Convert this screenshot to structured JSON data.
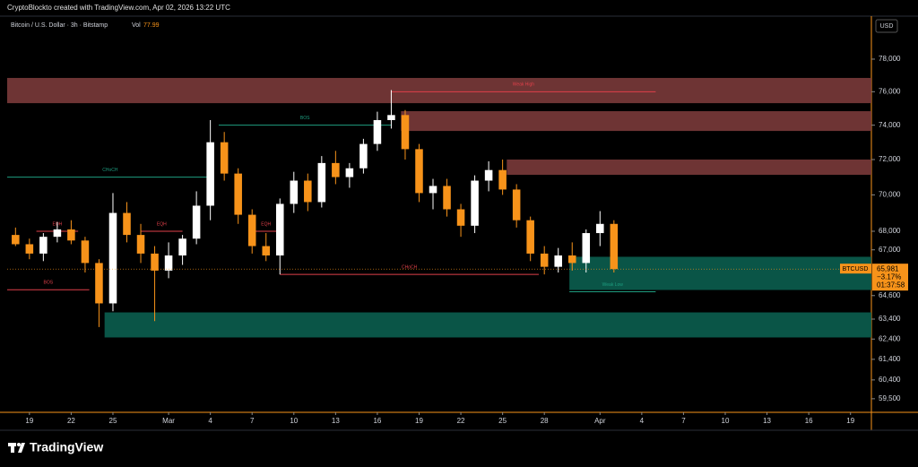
{
  "header": {
    "credit": "CryptoBlockto created with TradingView.com, Apr 02, 2026 13:22 UTC"
  },
  "footer": {
    "brand": "TradingView"
  },
  "chart_data": {
    "type": "candlestick",
    "title": "Bitcoin / U.S. Dollar · 3h · Bitstamp",
    "volume_label": "Vol",
    "volume": 77.99,
    "currency": "USD",
    "log_scale": true,
    "grid": false,
    "up_color": "#ffffff",
    "down_color": "#f7931a",
    "xlim": [
      -1.6,
      60.5
    ],
    "ylim": [
      58860,
      80720
    ],
    "xticks": [
      {
        "value": 0,
        "label": "19"
      },
      {
        "value": 3,
        "label": "22"
      },
      {
        "value": 6,
        "label": "25"
      },
      {
        "value": 10,
        "label": "Mar"
      },
      {
        "value": 13,
        "label": "4"
      },
      {
        "value": 16,
        "label": "7"
      },
      {
        "value": 19,
        "label": "10"
      },
      {
        "value": 22,
        "label": "13"
      },
      {
        "value": 25,
        "label": "16"
      },
      {
        "value": 28,
        "label": "19"
      },
      {
        "value": 31,
        "label": "22"
      },
      {
        "value": 34,
        "label": "25"
      },
      {
        "value": 37,
        "label": "28"
      },
      {
        "value": 41,
        "label": "Apr"
      },
      {
        "value": 44,
        "label": "4"
      },
      {
        "value": 47,
        "label": "7"
      },
      {
        "value": 50,
        "label": "10"
      },
      {
        "value": 53,
        "label": "13"
      },
      {
        "value": 56,
        "label": "16"
      },
      {
        "value": 59,
        "label": "19"
      }
    ],
    "yticks": [
      {
        "value": 78000,
        "label": "78,000"
      },
      {
        "value": 76000,
        "label": "76,000"
      },
      {
        "value": 74000,
        "label": "74,000"
      },
      {
        "value": 72000,
        "label": "72,000"
      },
      {
        "value": 70000,
        "label": "70,000"
      },
      {
        "value": 68000,
        "label": "68,000"
      },
      {
        "value": 67000,
        "label": "67,000"
      },
      {
        "value": 64600,
        "label": "64,600"
      },
      {
        "value": 63400,
        "label": "63,400"
      },
      {
        "value": 62400,
        "label": "62,400"
      },
      {
        "value": 61400,
        "label": "61,400"
      },
      {
        "value": 60400,
        "label": "60,400"
      },
      {
        "value": 59500,
        "label": "59,500"
      }
    ],
    "candles": [
      {
        "x": -1,
        "open": 67800,
        "high": 68200,
        "low": 67200,
        "close": 67300
      },
      {
        "x": 0,
        "open": 67300,
        "high": 67600,
        "low": 66500,
        "close": 66800
      },
      {
        "x": 1,
        "open": 66800,
        "high": 67900,
        "low": 66400,
        "close": 67700
      },
      {
        "x": 2,
        "open": 67700,
        "high": 68500,
        "low": 67400,
        "close": 68100
      },
      {
        "x": 3,
        "open": 68100,
        "high": 68600,
        "low": 67300,
        "close": 67500
      },
      {
        "x": 4,
        "open": 67500,
        "high": 67700,
        "low": 65800,
        "close": 66300
      },
      {
        "x": 5,
        "open": 66300,
        "high": 66500,
        "low": 63000,
        "close": 64200
      },
      {
        "x": 6,
        "open": 64200,
        "high": 70100,
        "low": 63800,
        "close": 69000
      },
      {
        "x": 7,
        "open": 69000,
        "high": 69600,
        "low": 67400,
        "close": 67800
      },
      {
        "x": 8,
        "open": 67800,
        "high": 68400,
        "low": 66300,
        "close": 66800
      },
      {
        "x": 9,
        "open": 66800,
        "high": 67200,
        "low": 63300,
        "close": 65900
      },
      {
        "x": 10,
        "open": 65900,
        "high": 67400,
        "low": 65500,
        "close": 66700
      },
      {
        "x": 11,
        "open": 66700,
        "high": 67800,
        "low": 66200,
        "close": 67600
      },
      {
        "x": 12,
        "open": 67600,
        "high": 70200,
        "low": 67300,
        "close": 69400
      },
      {
        "x": 13,
        "open": 69400,
        "high": 74300,
        "low": 68600,
        "close": 73000
      },
      {
        "x": 14,
        "open": 73000,
        "high": 73600,
        "low": 70800,
        "close": 71200
      },
      {
        "x": 15,
        "open": 71200,
        "high": 71500,
        "low": 68400,
        "close": 68900
      },
      {
        "x": 16,
        "open": 68900,
        "high": 69200,
        "low": 66800,
        "close": 67200
      },
      {
        "x": 17,
        "open": 67200,
        "high": 67900,
        "low": 66400,
        "close": 66700
      },
      {
        "x": 18,
        "open": 66700,
        "high": 69800,
        "low": 65700,
        "close": 69500
      },
      {
        "x": 19,
        "open": 69500,
        "high": 71300,
        "low": 69000,
        "close": 70800
      },
      {
        "x": 20,
        "open": 70800,
        "high": 71200,
        "low": 69100,
        "close": 69600
      },
      {
        "x": 21,
        "open": 69600,
        "high": 72200,
        "low": 69300,
        "close": 71800
      },
      {
        "x": 22,
        "open": 71800,
        "high": 72500,
        "low": 70600,
        "close": 71000
      },
      {
        "x": 23,
        "open": 71000,
        "high": 71800,
        "low": 70400,
        "close": 71500
      },
      {
        "x": 24,
        "open": 71500,
        "high": 73200,
        "low": 71200,
        "close": 72900
      },
      {
        "x": 25,
        "open": 72900,
        "high": 74800,
        "low": 72500,
        "close": 74300
      },
      {
        "x": 26,
        "open": 74300,
        "high": 76100,
        "low": 73800,
        "close": 74600
      },
      {
        "x": 27,
        "open": 74600,
        "high": 74900,
        "low": 72000,
        "close": 72600
      },
      {
        "x": 28,
        "open": 72600,
        "high": 72900,
        "low": 69600,
        "close": 70100
      },
      {
        "x": 29,
        "open": 70100,
        "high": 70900,
        "low": 69200,
        "close": 70500
      },
      {
        "x": 30,
        "open": 70500,
        "high": 70900,
        "low": 68800,
        "close": 69200
      },
      {
        "x": 31,
        "open": 69200,
        "high": 69500,
        "low": 67700,
        "close": 68300
      },
      {
        "x": 32,
        "open": 68300,
        "high": 71100,
        "low": 67900,
        "close": 70800
      },
      {
        "x": 33,
        "open": 70800,
        "high": 71900,
        "low": 70200,
        "close": 71400
      },
      {
        "x": 34,
        "open": 71400,
        "high": 72000,
        "low": 70000,
        "close": 70300
      },
      {
        "x": 35,
        "open": 70300,
        "high": 70600,
        "low": 68200,
        "close": 68600
      },
      {
        "x": 36,
        "open": 68600,
        "high": 68800,
        "low": 66400,
        "close": 66800
      },
      {
        "x": 37,
        "open": 66800,
        "high": 67200,
        "low": 65700,
        "close": 66100
      },
      {
        "x": 38,
        "open": 66100,
        "high": 67100,
        "low": 65800,
        "close": 66700
      },
      {
        "x": 39,
        "open": 66700,
        "high": 67400,
        "low": 65900,
        "close": 66300
      },
      {
        "x": 40,
        "open": 66300,
        "high": 68100,
        "low": 65800,
        "close": 67900
      },
      {
        "x": 41,
        "open": 67900,
        "high": 69100,
        "low": 67200,
        "close": 68400
      },
      {
        "x": 42,
        "open": 68400,
        "high": 68600,
        "low": 65800,
        "close": 65981
      }
    ],
    "zones": [
      {
        "x0": -1.6,
        "x1": 60.5,
        "top": 76840,
        "bottom": 75310,
        "color": "#7a3a3a"
      },
      {
        "x0": 26.7,
        "x1": 60.5,
        "top": 74830,
        "bottom": 73660,
        "color": "#7a3a3a"
      },
      {
        "x0": 34.3,
        "x1": 60.5,
        "top": 72000,
        "bottom": 71130,
        "color": "#7a3a3a"
      },
      {
        "x0": 38.8,
        "x1": 60.5,
        "top": 66630,
        "bottom": 64890,
        "color": "#0b5e4f"
      },
      {
        "x0": 5.4,
        "x1": 60.5,
        "top": 63740,
        "bottom": 62480,
        "color": "#0b5e4f"
      }
    ],
    "annotations": [
      {
        "text": "CHoCH",
        "price": 71000,
        "x0": -1.6,
        "x1": 13.2,
        "color": "#1e9e80"
      },
      {
        "text": "BOS",
        "price": 74000,
        "x0": 13.6,
        "x1": 26,
        "color": "#1e9e80"
      },
      {
        "text": "Weak High",
        "price": 76000,
        "x0": 26,
        "x1": 45,
        "color": "#e0404a"
      },
      {
        "text": "EQH",
        "price": 68000,
        "x0": 0.5,
        "x1": 3.5,
        "color": "#e0404a"
      },
      {
        "text": "EQH",
        "price": 68000,
        "x0": 8,
        "x1": 11,
        "color": "#e0404a"
      },
      {
        "text": "EQH",
        "price": 68000,
        "x0": 16,
        "x1": 18,
        "color": "#e0404a"
      },
      {
        "text": "BOS",
        "price": 64900,
        "x0": -1.6,
        "x1": 4.3,
        "color": "#e0404a"
      },
      {
        "text": "CHoCH",
        "price": 65700,
        "x0": 18,
        "x1": 36.6,
        "color": "#e0404a"
      },
      {
        "text": "Weak Low",
        "price": 64800,
        "x0": 38.8,
        "x1": 45,
        "color": "#1e9e80"
      }
    ],
    "last_price": {
      "symbol": "BTCUSD",
      "value": 65981,
      "label": "65,981",
      "change": "−3.17%",
      "countdown": "01:37:58"
    }
  }
}
